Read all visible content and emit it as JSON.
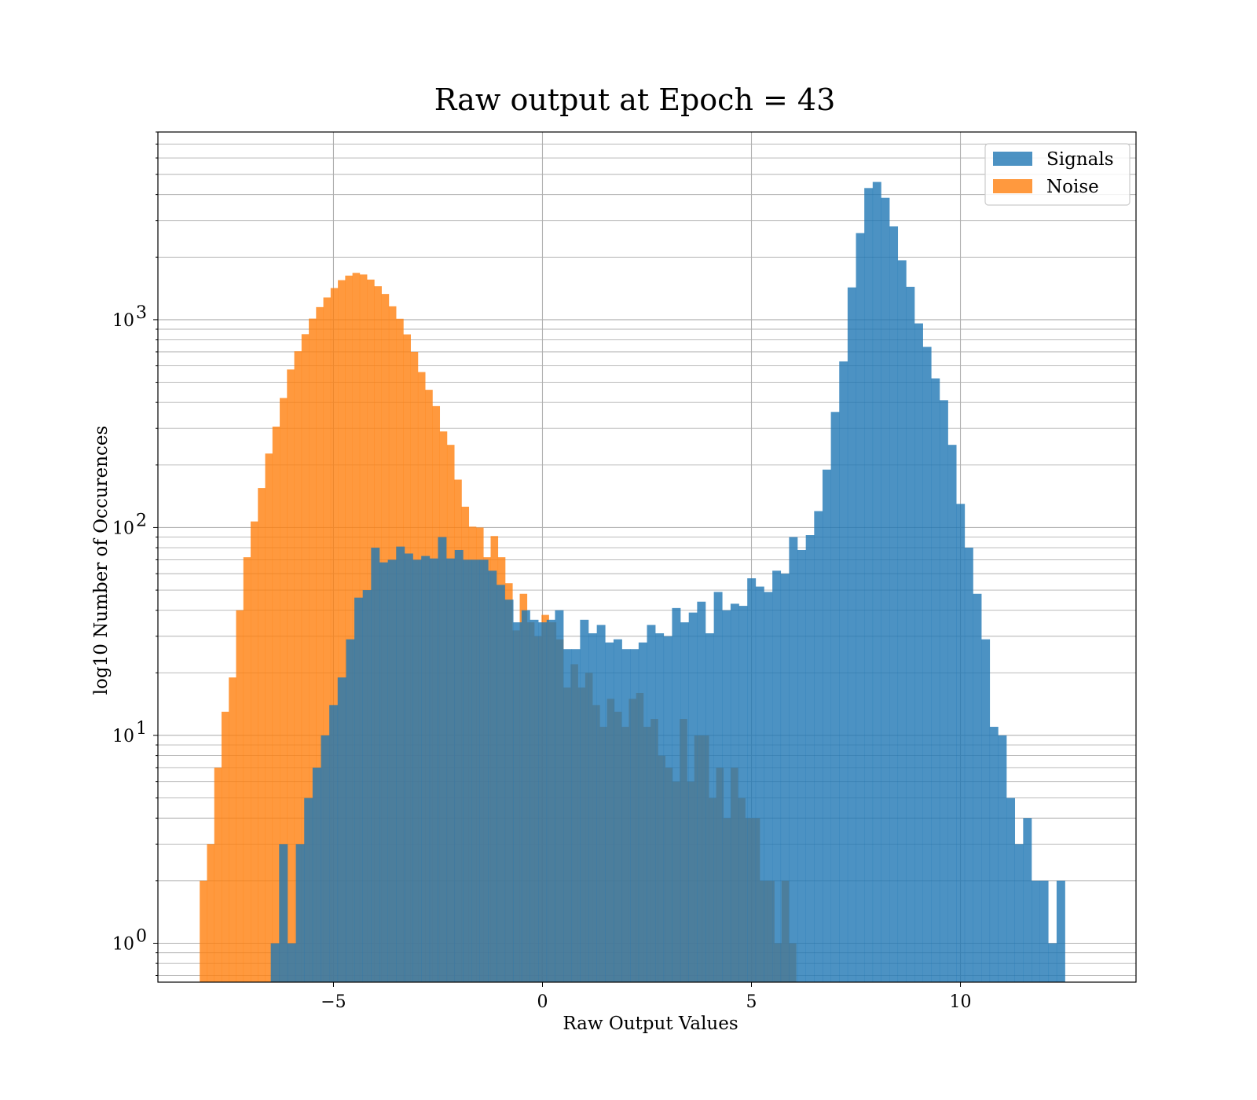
{
  "chart_data": {
    "type": "bar",
    "title": "Raw output at Epoch = 43",
    "xlabel": "Raw Output Values",
    "ylabel": "log10 Number of Occurences",
    "yscale": "log",
    "xlim": [
      -9.2,
      14.2
    ],
    "ylim": [
      0.65,
      8000
    ],
    "grid": true,
    "legend_position": "top-right",
    "x_ticks": [
      {
        "value": -5,
        "label": "−5"
      },
      {
        "value": 0,
        "label": "0"
      },
      {
        "value": 5,
        "label": "5"
      },
      {
        "value": 10,
        "label": "10"
      }
    ],
    "y_ticks": [
      {
        "value": 1,
        "label": "10",
        "exp": "0"
      },
      {
        "value": 10,
        "label": "10",
        "exp": "1"
      },
      {
        "value": 100,
        "label": "10",
        "exp": "2"
      },
      {
        "value": 1000,
        "label": "10",
        "exp": "3"
      }
    ],
    "series": [
      {
        "name": "Noise",
        "color": "#ff7f0e",
        "x_start": -8.2,
        "bin_width": 0.174,
        "values": [
          2,
          3,
          7,
          13,
          19,
          40,
          72,
          107,
          155,
          227,
          306,
          420,
          576,
          705,
          852,
          1012,
          1150,
          1280,
          1420,
          1550,
          1630,
          1680,
          1650,
          1560,
          1450,
          1330,
          1160,
          1010,
          850,
          700,
          560,
          460,
          384,
          290,
          250,
          170,
          126,
          101,
          100,
          72,
          91,
          72,
          54,
          32,
          48,
          35,
          30,
          38,
          35,
          29,
          17,
          22,
          17,
          20,
          14,
          11,
          15,
          13,
          11,
          15,
          16,
          11,
          12,
          8,
          7,
          6,
          12,
          6,
          10,
          10,
          5,
          7,
          4,
          7,
          5,
          4,
          4,
          2,
          2,
          1,
          2,
          1
        ]
      },
      {
        "name": "Signals",
        "color": "#1f77b4",
        "x_start": -6.5,
        "bin_width": 0.2,
        "values": [
          1,
          3,
          1,
          3,
          5,
          7,
          10,
          14,
          19,
          29,
          46,
          50,
          80,
          68,
          70,
          81,
          75,
          70,
          73,
          71,
          90,
          71,
          78,
          70,
          70,
          70,
          62,
          53,
          45,
          35,
          40,
          36,
          35,
          36,
          40,
          26,
          26,
          36,
          31,
          34,
          28,
          29,
          26,
          26,
          28,
          34,
          31,
          30,
          41,
          35,
          39,
          44,
          31,
          49,
          40,
          43,
          42,
          57,
          52,
          49,
          62,
          60,
          90,
          78,
          92,
          120,
          190,
          360,
          630,
          1430,
          2610,
          4300,
          4600,
          3860,
          2810,
          1930,
          1440,
          960,
          740,
          522,
          410,
          250,
          130,
          80,
          48,
          29,
          11,
          10,
          5,
          3,
          4,
          2,
          2,
          1,
          2
        ]
      }
    ]
  }
}
